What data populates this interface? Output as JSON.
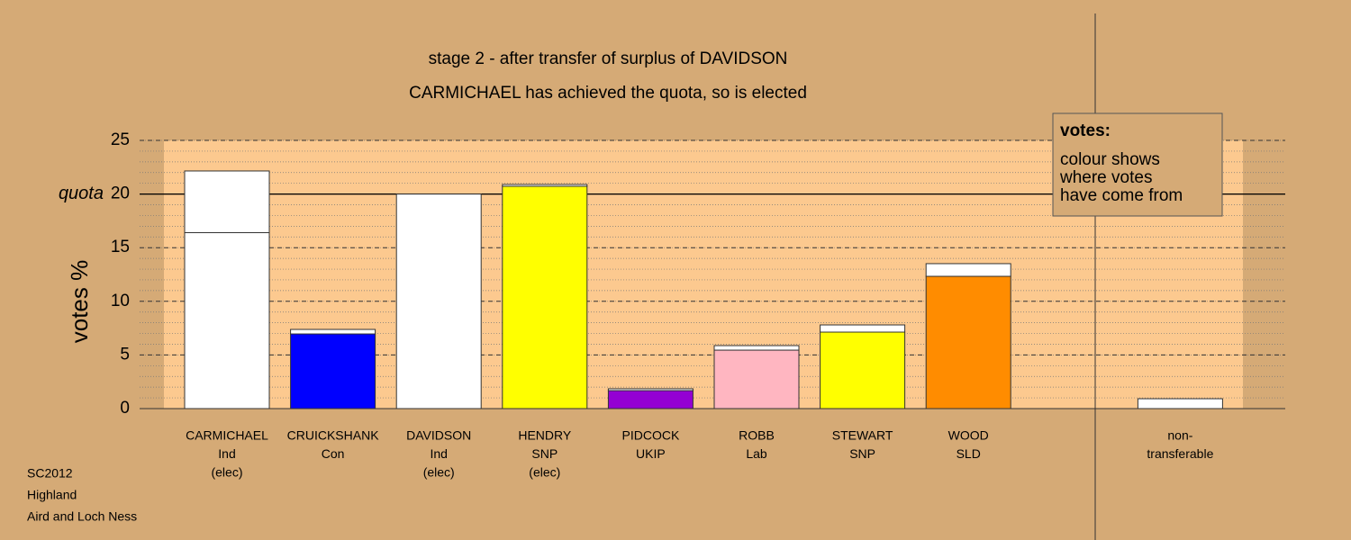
{
  "chart_data": {
    "type": "bar",
    "title": "stage 2 - after transfer of surplus of DAVIDSON",
    "subtitle": "CARMICHAEL has achieved the quota, so is elected",
    "y_label": "votes %",
    "quota_label": "quota",
    "quota": 20,
    "categories": [
      [
        "CARMICHAEL",
        "Ind",
        "(elec)"
      ],
      [
        "CRUICKSHANK",
        "Con"
      ],
      [
        "DAVIDSON",
        "Ind",
        "(elec)"
      ],
      [
        "HENDRY",
        "SNP",
        "(elec)"
      ],
      [
        "PIDCOCK",
        "UKIP"
      ],
      [
        "ROBB",
        "Lab"
      ],
      [
        "STEWART",
        "SNP"
      ],
      [
        "WOOD",
        "SLD"
      ],
      [
        "non-",
        "transferable"
      ]
    ],
    "base_values": [
      16.4,
      6.96,
      20.0,
      20.72,
      1.68,
      5.45,
      7.13,
      12.33,
      0
    ],
    "base_colors": [
      "#ffffff",
      "#0000ff",
      "#ffffff",
      "#ffff00",
      "#9400d3",
      "#ffb6c1",
      "#ffff00",
      "#ff8c00",
      "#ffffff"
    ],
    "transfer_values": [
      5.75,
      0.42,
      0,
      0.17,
      0.17,
      0.42,
      0.67,
      1.18,
      0.92
    ],
    "transfer_color": "#ffffff",
    "ylim": [
      0,
      25
    ],
    "yticks": [
      0,
      5,
      10,
      15,
      20,
      25
    ],
    "minor_grid_step": 1,
    "grid": true,
    "legend": {
      "title": "votes:",
      "lines": [
        "colour shows",
        "where votes",
        "have come from"
      ]
    },
    "footer": [
      "SC2012",
      "Highland",
      "Aird and Loch Ness"
    ]
  }
}
